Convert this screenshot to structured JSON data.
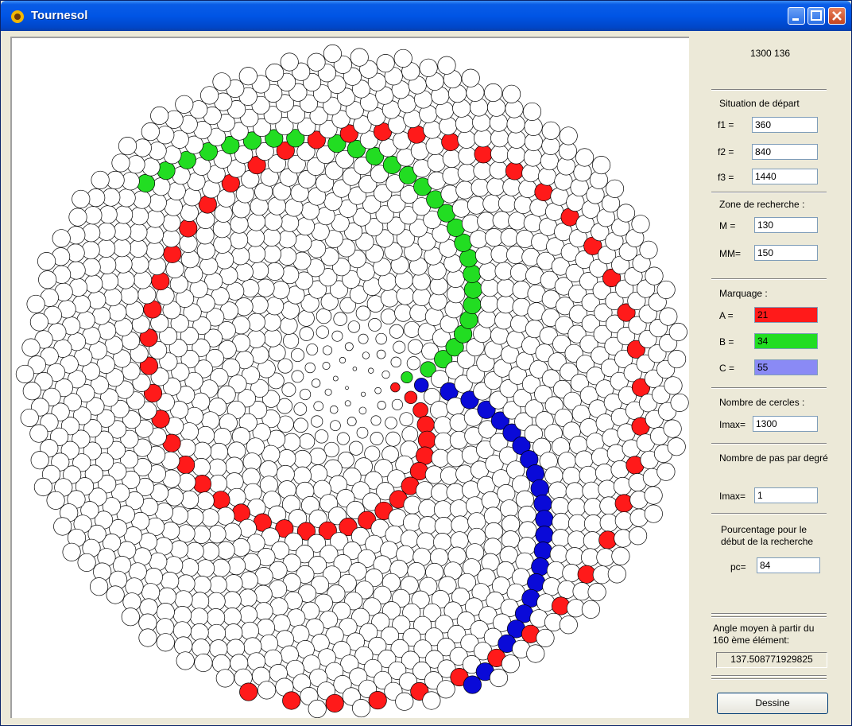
{
  "window": {
    "title": "Tournesol",
    "counts": "1300  136"
  },
  "start_situation": {
    "header": "Situation de départ",
    "f1_label": "f1 =",
    "f1_value": "360",
    "f2_label": "f2 =",
    "f2_value": "840",
    "f3_label": "f3 =",
    "f3_value": "1440"
  },
  "search_zone": {
    "header": "Zone de recherche :",
    "m_label": "M =",
    "m_value": "130",
    "mm_label": "MM=",
    "mm_value": "150"
  },
  "marking": {
    "header": "Marquage :",
    "a_label": "A =",
    "a_value": "21",
    "a_color": "#ff1a1a",
    "b_label": "B =",
    "b_value": "34",
    "b_color": "#22dd22",
    "c_label": "C =",
    "c_value": "55",
    "c_color": "#8a8af5"
  },
  "circle_count": {
    "header": "Nombre de cercles :",
    "label": "Imax=",
    "value": "1300"
  },
  "steps_per_degree": {
    "header": "Nombre de pas par degré",
    "label": "Imax=",
    "value": "1"
  },
  "percentage": {
    "header": "Pourcentage pour le début de la recherche",
    "label": "pc=",
    "value": "84"
  },
  "mean_angle": {
    "header": "Angle moyen à partir du 160 ème élément:",
    "value": "137.508771929825"
  },
  "draw_button": "Dessine",
  "drawing": {
    "total_circles": 1300,
    "angle_deg": 137.508771929825,
    "parastichy_red": 21,
    "parastichy_green": 34,
    "parastichy_blue": 55,
    "red_color": "#ff1a1a",
    "green_color": "#22dd22",
    "blue_color": "#0a0ad8"
  }
}
